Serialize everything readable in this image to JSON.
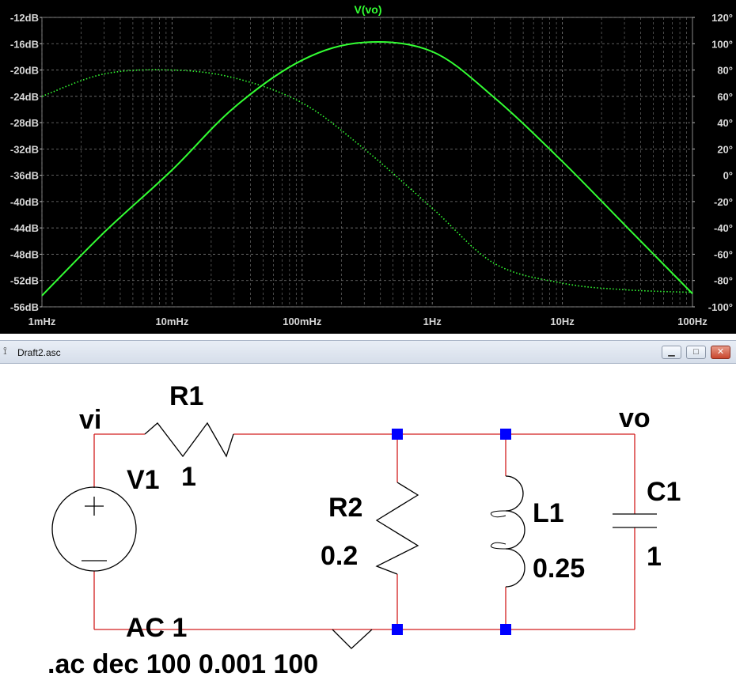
{
  "plot": {
    "title": "V(vo)",
    "y_left_ticks": [
      "-12dB",
      "-16dB",
      "-20dB",
      "-24dB",
      "-28dB",
      "-32dB",
      "-36dB",
      "-40dB",
      "-44dB",
      "-48dB",
      "-52dB",
      "-56dB"
    ],
    "y_right_ticks": [
      "120°",
      "100°",
      "80°",
      "60°",
      "40°",
      "20°",
      "0°",
      "-20°",
      "-40°",
      "-60°",
      "-80°",
      "-100°"
    ],
    "x_ticks": [
      "1mHz",
      "10mHz",
      "100mHz",
      "1Hz",
      "10Hz",
      "100Hz"
    ],
    "colors": {
      "background": "#000000",
      "trace": "#33ff33",
      "grid": "#7a7a7a"
    }
  },
  "chart_data": {
    "type": "line",
    "title": "V(vo)",
    "x_scale": "log",
    "x_range": [
      0.001,
      100
    ],
    "x_unit": "Hz",
    "y_left_range": [
      -56,
      -12
    ],
    "y_left_unit": "dB",
    "y_right_range": [
      -100,
      120
    ],
    "y_right_unit": "°",
    "grid": true,
    "series": [
      {
        "name": "V(vo)",
        "quantity": "magnitude",
        "axis": "left",
        "style": "solid",
        "x": [
          0.001,
          0.003,
          0.01,
          0.03,
          0.1,
          0.3,
          1,
          3,
          10,
          30,
          100
        ],
        "y": [
          -54.3,
          -44.7,
          -35.2,
          -25.7,
          -18.5,
          -15.8,
          -17.2,
          -24.2,
          -33.9,
          -43.5,
          -54
        ]
      },
      {
        "name": "V(vo) phase",
        "quantity": "phase",
        "axis": "right",
        "style": "dotted",
        "x": [
          0.001,
          0.003,
          0.01,
          0.03,
          0.1,
          0.3,
          1,
          3,
          10,
          30,
          100
        ],
        "y": [
          60,
          77,
          80,
          74,
          55,
          20,
          -25,
          -67,
          -82,
          -87,
          -89
        ]
      }
    ]
  },
  "window": {
    "title": "Draft2.asc",
    "minimize_icon": "minimize-icon",
    "maximize_icon": "maximize-icon",
    "close_icon": "close-icon"
  },
  "schematic": {
    "nets": {
      "vi": "vi",
      "vo": "vo"
    },
    "R1": {
      "name": "R1",
      "value": "1"
    },
    "V1": {
      "name": "V1",
      "value": "AC 1"
    },
    "R2": {
      "name": "R2",
      "value": "0.2"
    },
    "L1": {
      "name": "L1",
      "value": "0.25"
    },
    "C1": {
      "name": "C1",
      "value": "1"
    },
    "directive": ".ac dec 100 0.001 100",
    "colors": {
      "wire": "#d21e1e",
      "junction": "#0000ff",
      "component": "#000000"
    }
  }
}
